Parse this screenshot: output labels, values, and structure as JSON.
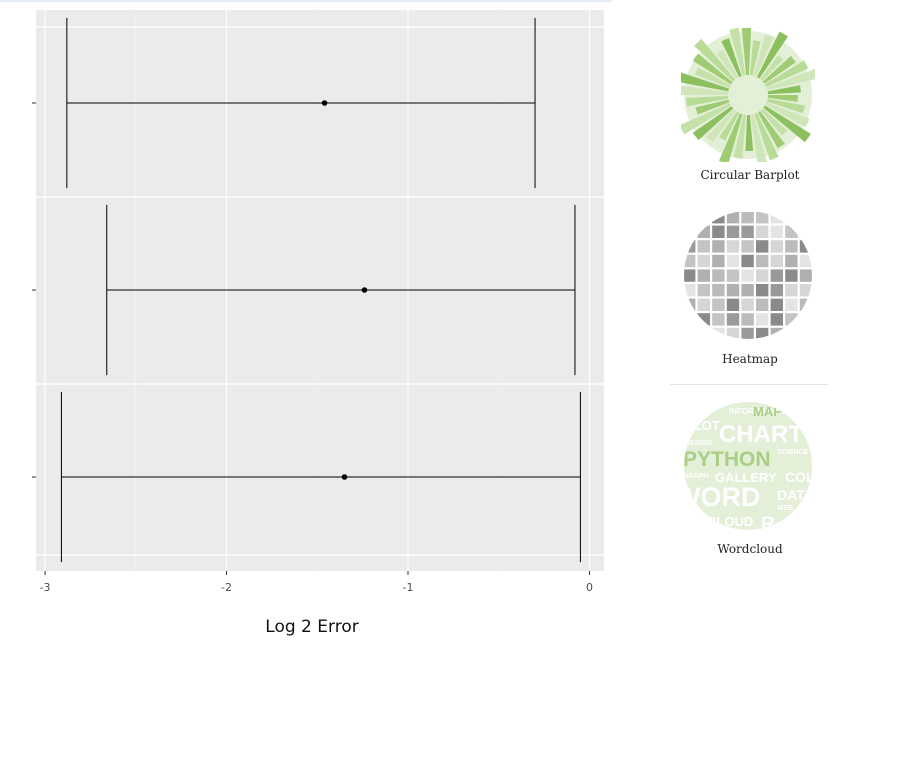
{
  "chart_data": {
    "type": "errorbar",
    "orientation": "horizontal",
    "xlabel": "Log 2 Error",
    "xlim": [
      -3.05,
      0.08
    ],
    "xticks": [
      -3,
      -2,
      -1,
      0
    ],
    "xtick_labels": [
      "-3",
      "-2",
      "-1",
      "0"
    ],
    "grid": true,
    "rows": [
      {
        "estimate": -1.46,
        "lower": -2.88,
        "upper": -0.3
      },
      {
        "estimate": -1.24,
        "lower": -2.66,
        "upper": -0.08
      },
      {
        "estimate": -1.35,
        "lower": -2.91,
        "upper": -0.05
      }
    ]
  },
  "gallery": {
    "items": [
      {
        "label": "Circular Barplot",
        "icon": "circular-barplot-thumbnail"
      },
      {
        "label": "Heatmap",
        "icon": "heatmap-thumbnail"
      },
      {
        "label": "Wordcloud",
        "icon": "wordcloud-thumbnail"
      }
    ],
    "wordcloud_words": [
      "INFORMATION",
      "MAP",
      "PLOT",
      "CHART",
      "DESIGN",
      "PYTHON",
      "SCIENCE",
      "GRAPH",
      "GALLERY",
      "COL",
      "WORD",
      "DATA",
      "WEB",
      "CLOUD",
      "R"
    ],
    "colors": {
      "green": "#a9cf86",
      "light_green": "#e3efd7",
      "gray": "#bdbdbd"
    }
  }
}
